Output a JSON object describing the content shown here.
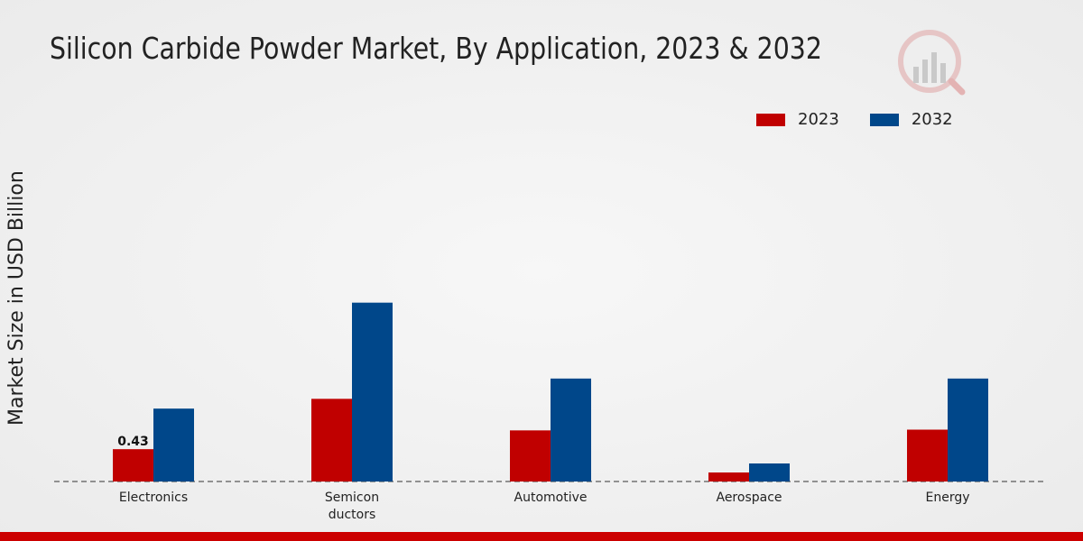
{
  "colors": {
    "series_2023": "#c00000",
    "series_2032": "#00478a",
    "bottom_bar": "#cc0000",
    "axis": "#333333"
  },
  "logo": {
    "icon": "brand-chart-logo-icon"
  },
  "chart_data": {
    "type": "bar",
    "title": "Silicon Carbide Powder Market, By Application, 2023 & 2032",
    "xlabel": "",
    "ylabel": "Market Size in USD Billion",
    "categories": [
      "Electronics",
      "Semicon\nductors",
      "Automotive",
      "Aerospace",
      "Energy"
    ],
    "series": [
      {
        "name": "2023",
        "values": [
          0.43,
          1.1,
          0.68,
          0.12,
          0.69
        ]
      },
      {
        "name": "2032",
        "values": [
          0.97,
          2.38,
          1.37,
          0.24,
          1.37
        ]
      }
    ],
    "data_labels": [
      {
        "series": "2023",
        "category": "Electronics",
        "text": "0.43"
      }
    ],
    "ylim": [
      0,
      4.8
    ],
    "grid": false,
    "legend_position": "top-right"
  }
}
